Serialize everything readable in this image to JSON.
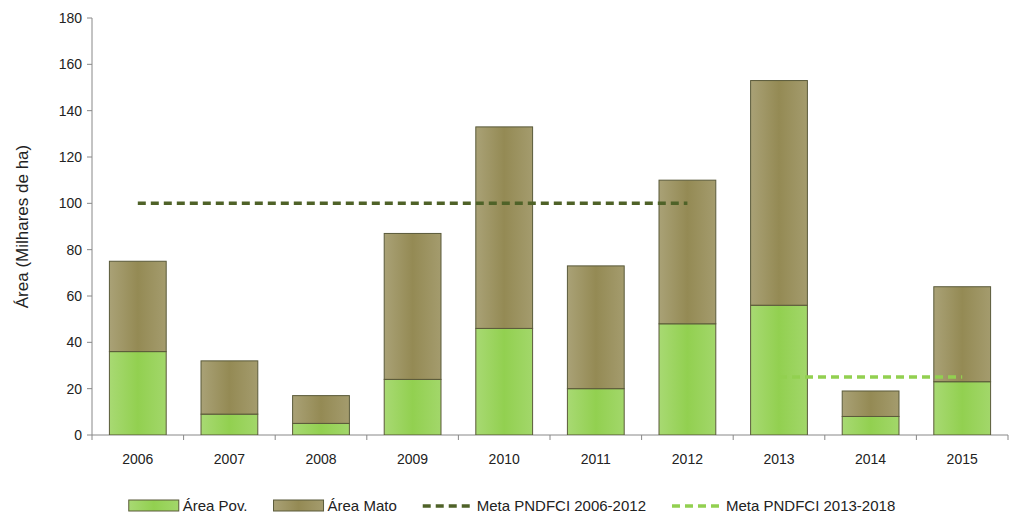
{
  "chart_data": {
    "type": "bar",
    "stacked": true,
    "y_label": "Área (Milhares de ha)",
    "categories": [
      "2006",
      "2007",
      "2008",
      "2009",
      "2010",
      "2011",
      "2012",
      "2013",
      "2014",
      "2015"
    ],
    "series": [
      {
        "name": "Área Pov.",
        "type": "bar",
        "color": "#92d050",
        "values": [
          36,
          9,
          5,
          24,
          46,
          20,
          48,
          56,
          8,
          23
        ]
      },
      {
        "name": "Área Mato",
        "type": "bar",
        "color": "#948a54",
        "values": [
          39,
          23,
          12,
          63,
          87,
          53,
          62,
          97,
          11,
          41
        ]
      },
      {
        "name": "Meta PNDFCI 2006-2012",
        "type": "line",
        "line_style": "dashed",
        "color": "#4f6228",
        "values": [
          100,
          100,
          100,
          100,
          100,
          100,
          100,
          null,
          null,
          null
        ]
      },
      {
        "name": "Meta PNDFCI 2013-2018",
        "type": "line",
        "line_style": "dashed",
        "color": "#92d050",
        "values": [
          null,
          null,
          null,
          null,
          null,
          null,
          null,
          25,
          25,
          25
        ]
      }
    ],
    "ylim": [
      0,
      180
    ],
    "yticks": [
      0,
      20,
      40,
      60,
      80,
      100,
      120,
      140,
      160,
      180
    ],
    "grid": false,
    "legend": "bottom"
  }
}
